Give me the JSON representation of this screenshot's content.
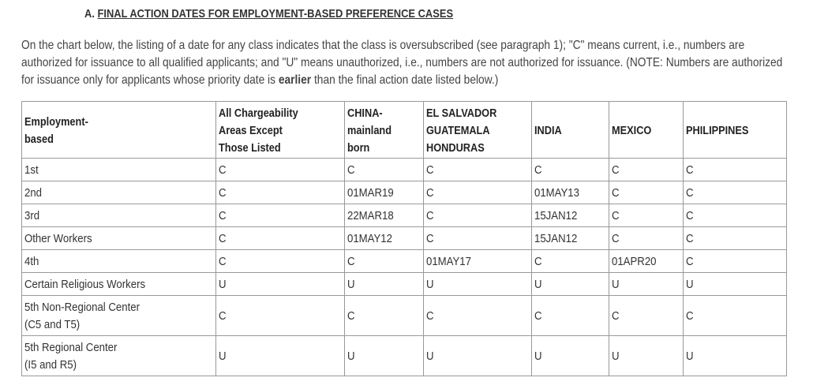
{
  "heading": {
    "prefix": "A. ",
    "text": "FINAL ACTION DATES FOR EMPLOYMENT-BASED PREFERENCE CASES"
  },
  "intro": {
    "before_bold": "On the chart below, the listing of a date for any class indicates that the class is oversubscribed (see paragraph 1); \"C\" means current, i.e., numbers are authorized for issuance to all qualified applicants; and \"U\" means unauthorized, i.e., numbers are not authorized for issuance. (NOTE: Numbers are authorized for issuance only for applicants whose priority date is ",
    "bold": "earlier",
    "after_bold": " than the final action date listed below.)"
  },
  "table": {
    "headers": [
      [
        "Employment-",
        "based"
      ],
      [
        "All Chargeability",
        "Areas Except",
        "Those Listed"
      ],
      [
        "CHINA-",
        "mainland",
        "born"
      ],
      [
        "EL SALVADOR",
        "GUATEMALA",
        "HONDURAS"
      ],
      [
        "INDIA"
      ],
      [
        "MEXICO"
      ],
      [
        "PHILIPPINES"
      ]
    ],
    "rows": [
      {
        "label": [
          "1st"
        ],
        "values": [
          "C",
          "C",
          "C",
          "C",
          "C",
          "C"
        ]
      },
      {
        "label": [
          "2nd"
        ],
        "values": [
          "C",
          "01MAR19",
          "C",
          "01MAY13",
          "C",
          "C"
        ]
      },
      {
        "label": [
          "3rd"
        ],
        "values": [
          "C",
          "22MAR18",
          "C",
          "15JAN12",
          "C",
          "C"
        ]
      },
      {
        "label": [
          "Other Workers"
        ],
        "values": [
          "C",
          "01MAY12",
          "C",
          "15JAN12",
          "C",
          "C"
        ]
      },
      {
        "label": [
          "4th"
        ],
        "values": [
          "C",
          "C",
          "01MAY17",
          "C",
          "01APR20",
          "C"
        ]
      },
      {
        "label": [
          "Certain Religious Workers"
        ],
        "values": [
          "U",
          "U",
          "U",
          "U",
          "U",
          "U"
        ]
      },
      {
        "label": [
          "5th Non-Regional Center",
          "(C5 and T5)"
        ],
        "values": [
          "C",
          "C",
          "C",
          "C",
          "C",
          "C"
        ]
      },
      {
        "label": [
          "5th Regional Center",
          "(I5 and R5)"
        ],
        "values": [
          "U",
          "U",
          "U",
          "U",
          "U",
          "U"
        ]
      }
    ]
  }
}
